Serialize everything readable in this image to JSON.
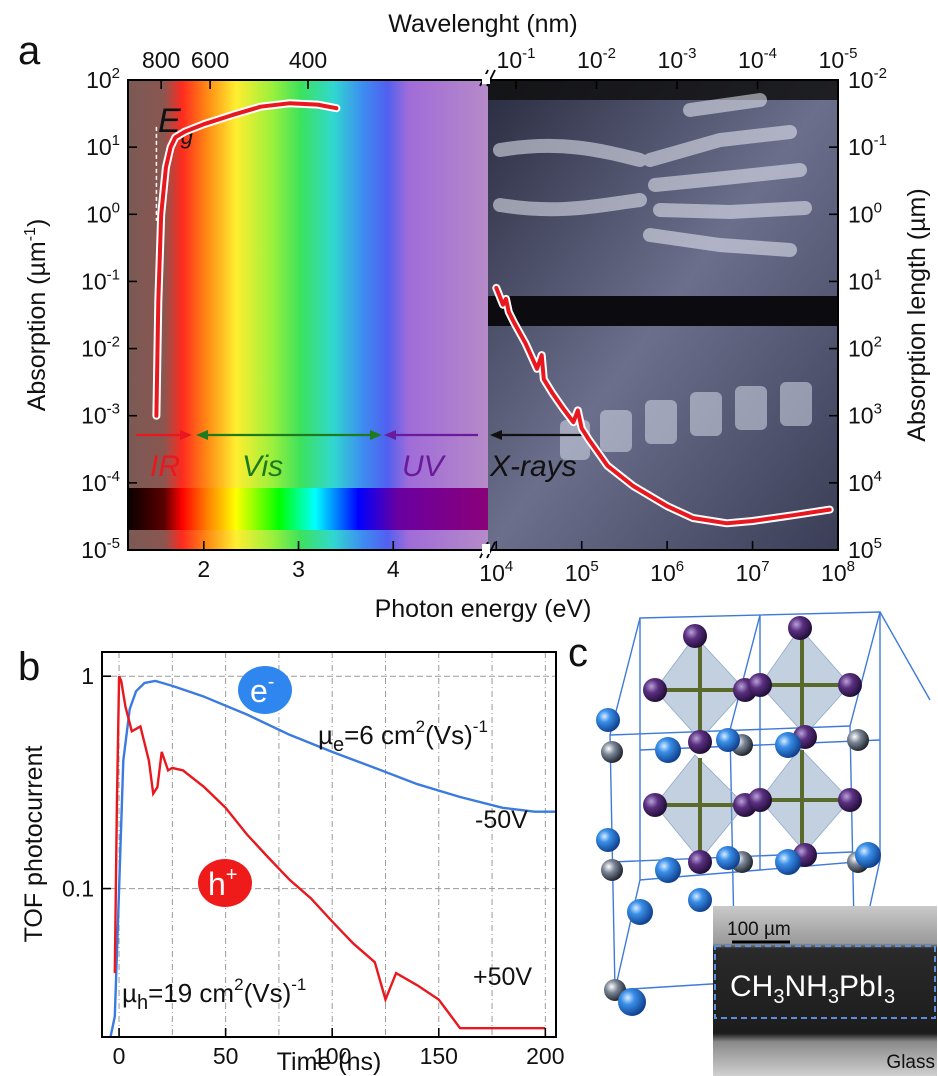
{
  "panel_letters": {
    "a": "a",
    "b": "b",
    "c": "c"
  },
  "colors": {
    "absorption_curve": "#e8181e",
    "hole_curve": "#e8181e",
    "electron_curve": "#3b7be0",
    "arrow_ir": "#e8181e",
    "arrow_vis": "#1f7a1f",
    "arrow_uv": "#6a1b9a",
    "arrow_xray": "#111111"
  },
  "chart_data": [
    {
      "type": "line",
      "panel": "a",
      "top_axis_label": "Wavelenght (nm)",
      "xlabel": "Photon energy (eV)",
      "ylabel": "Absorption (µm",
      "ylabel_exp": "-1",
      "ylabel_close": ")",
      "y2label": "Absorption length (µm)",
      "y_scale": "log",
      "ylim": [
        1e-05,
        100
      ],
      "x_scale": "linear (1.2-5 eV) / log (1e4-1e8 eV), broken axis",
      "xlim_left": [
        1.2,
        5
      ],
      "xlim_right": [
        8000,
        100000000.0
      ],
      "bottom_ticks_left": [
        "2",
        "3",
        "4"
      ],
      "bottom_ticks_right": [
        {
          "base": "10",
          "exp": "4"
        },
        {
          "base": "10",
          "exp": "5"
        },
        {
          "base": "10",
          "exp": "6"
        },
        {
          "base": "10",
          "exp": "7"
        },
        {
          "base": "10",
          "exp": "8"
        }
      ],
      "top_ticks_left": [
        "800",
        "600",
        "400"
      ],
      "top_ticks_right": [
        {
          "base": "10",
          "exp": "-1"
        },
        {
          "base": "10",
          "exp": "-2"
        },
        {
          "base": "10",
          "exp": "-3"
        },
        {
          "base": "10",
          "exp": "-4"
        },
        {
          "base": "10",
          "exp": "-5"
        }
      ],
      "left_ticks": [
        {
          "base": "10",
          "exp": "2"
        },
        {
          "base": "10",
          "exp": "1"
        },
        {
          "base": "10",
          "exp": "0"
        },
        {
          "base": "10",
          "exp": "-1"
        },
        {
          "base": "10",
          "exp": "-2"
        },
        {
          "base": "10",
          "exp": "-3"
        },
        {
          "base": "10",
          "exp": "-4"
        },
        {
          "base": "10",
          "exp": "-5"
        }
      ],
      "right_ticks": [
        {
          "base": "10",
          "exp": "-2"
        },
        {
          "base": "10",
          "exp": "-1"
        },
        {
          "base": "10",
          "exp": "0"
        },
        {
          "base": "10",
          "exp": "1"
        },
        {
          "base": "10",
          "exp": "2"
        },
        {
          "base": "10",
          "exp": "3"
        },
        {
          "base": "10",
          "exp": "4"
        },
        {
          "base": "10",
          "exp": "5"
        }
      ],
      "band_gap_label": {
        "main": "E",
        "sub": "g"
      },
      "band_gap_eV": 1.5,
      "region_labels": [
        "IR",
        "Vis",
        "UV",
        "X-rays"
      ],
      "series_optical": {
        "x_eV": [
          1.5,
          1.52,
          1.55,
          1.6,
          1.65,
          1.7,
          1.8,
          2.0,
          2.3,
          2.6,
          2.9,
          3.2,
          3.4
        ],
        "y": [
          0.001,
          0.05,
          1.0,
          5.0,
          10.0,
          14.0,
          17.0,
          22.0,
          30.0,
          40.0,
          45.0,
          43.0,
          38.0
        ]
      },
      "series_xray": {
        "x_eV": [
          10000,
          12000,
          13000,
          14000,
          16000,
          22000,
          30000,
          34000,
          36000,
          45000,
          60000,
          80000,
          90000,
          100000,
          120000,
          200000,
          400000,
          1000000,
          2000000,
          5000000,
          10000000,
          30000000,
          80000000
        ],
        "y": [
          0.08,
          0.045,
          0.055,
          0.035,
          0.025,
          0.012,
          0.005,
          0.008,
          0.0035,
          0.0022,
          0.0013,
          0.0008,
          0.0012,
          0.00065,
          0.00045,
          0.00018,
          9e-05,
          4.5e-05,
          3e-05,
          2.5e-05,
          2.7e-05,
          3.3e-05,
          4e-05
        ]
      }
    },
    {
      "type": "line",
      "panel": "b",
      "xlabel": "Time (ns)",
      "ylabel": "TOF photocurrent",
      "y_scale": "log",
      "xlim": [
        -8,
        205
      ],
      "ylim": [
        0.02,
        1.3
      ],
      "grid": true,
      "x_ticks": [
        "0",
        "50",
        "100",
        "150",
        "200"
      ],
      "y_ticks": [
        "1",
        "0.1"
      ],
      "carrier_labels": [
        {
          "main": "e",
          "sup": "-"
        },
        {
          "main": "h",
          "sup": "+"
        }
      ],
      "mobility_e": {
        "mu": "µ",
        "sub": "e",
        "mid": "=6 cm",
        "sup1": "2",
        "mid2": "(Vs)",
        "sup2": "-1"
      },
      "mobility_h": {
        "mu": "µ",
        "sub": "h",
        "mid": "=19 cm",
        "sup1": "2",
        "mid2": "(Vs)",
        "sup2": "-1"
      },
      "bias_labels": [
        "-50V",
        "+50V"
      ],
      "series": [
        {
          "carrier": "electron",
          "bias": "-50V",
          "x": [
            -4,
            -2,
            0,
            2,
            5,
            8,
            12,
            17,
            25,
            40,
            60,
            80,
            100,
            120,
            140,
            160,
            180,
            195,
            205
          ],
          "y": [
            0.02,
            0.025,
            0.1,
            0.4,
            0.7,
            0.85,
            0.93,
            0.95,
            0.9,
            0.8,
            0.66,
            0.53,
            0.44,
            0.37,
            0.31,
            0.27,
            0.24,
            0.23,
            0.23
          ]
        },
        {
          "carrier": "hole",
          "bias": "+50V",
          "x": [
            -2,
            -1,
            0,
            1,
            3,
            6,
            10,
            14,
            16,
            18,
            20,
            23,
            25,
            30,
            40,
            50,
            60,
            70,
            80,
            90,
            100,
            110,
            120,
            125,
            130,
            140,
            150,
            160,
            200
          ],
          "y": [
            0.04,
            0.25,
            1.0,
            0.95,
            0.72,
            0.55,
            0.58,
            0.4,
            0.28,
            0.3,
            0.44,
            0.36,
            0.37,
            0.36,
            0.3,
            0.24,
            0.18,
            0.14,
            0.11,
            0.09,
            0.07,
            0.055,
            0.045,
            0.03,
            0.04,
            0.035,
            0.03,
            0.022,
            0.022
          ]
        }
      ]
    }
  ],
  "panel_c": {
    "scale_bar": "100 µm",
    "formula": [
      {
        "t": "CH",
        "sub": false
      },
      {
        "t": "3",
        "sub": true
      },
      {
        "t": "NH",
        "sub": false
      },
      {
        "t": "3",
        "sub": true
      },
      {
        "t": "PbI",
        "sub": false
      },
      {
        "t": "3",
        "sub": true
      }
    ],
    "substrate_label": "Glass"
  }
}
